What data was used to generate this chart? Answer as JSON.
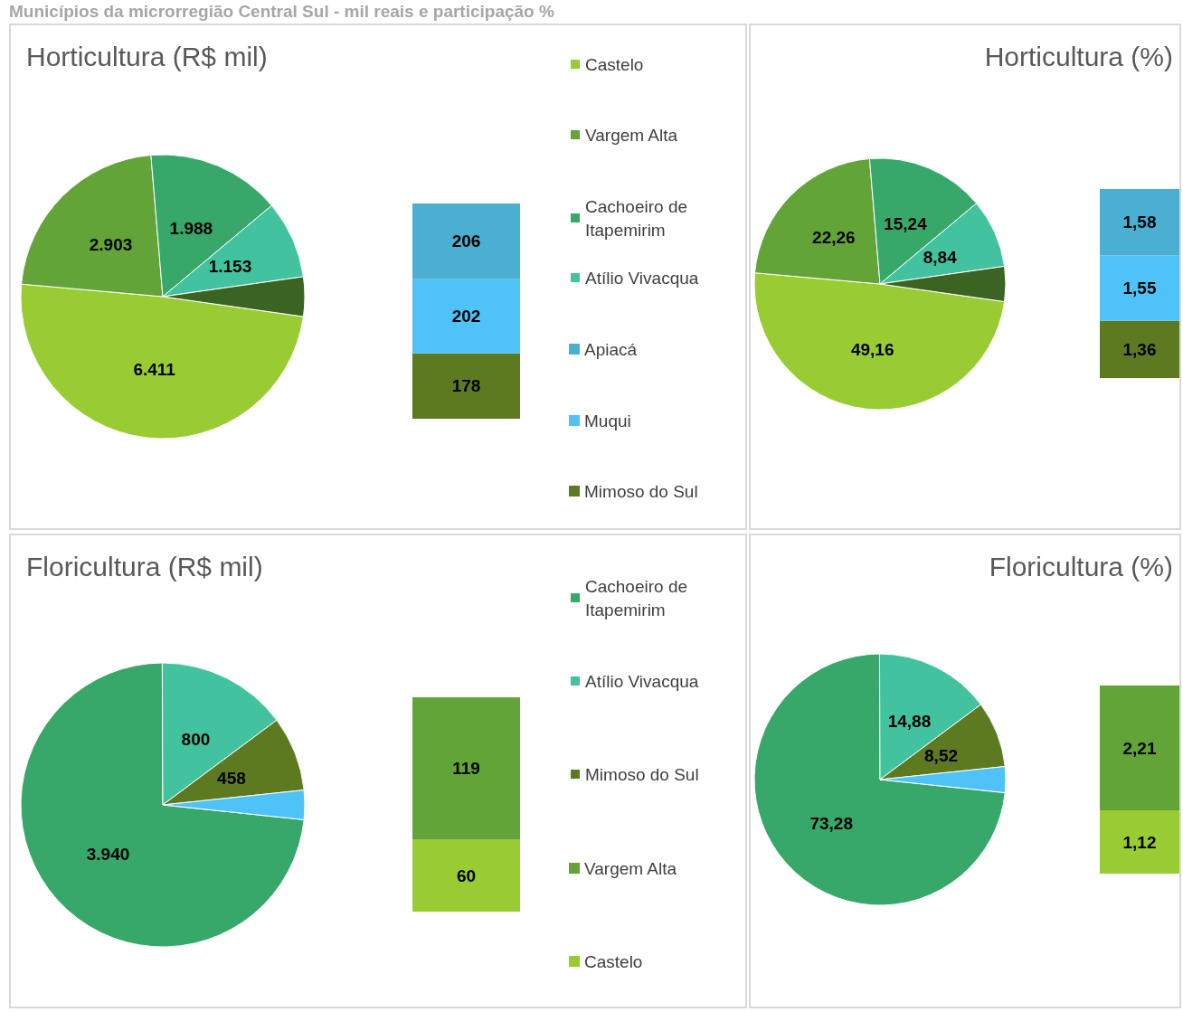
{
  "chart_data": [
    {
      "type": "pie",
      "title": "Horticultura (R$ mil)",
      "annotations": [
        "Municípios da microrregião Central Sul - mil reais e participação %"
      ],
      "categories": [
        "Castelo",
        "Vargem Alta",
        "Cachoeiro de Itapemirim",
        "Atílio Vivacqua",
        null
      ],
      "values": [
        6411,
        2903,
        1988,
        1153,
        586
      ],
      "value_labels": [
        "6.411",
        "2.903",
        "1.988",
        "1.153",
        null
      ],
      "colors": [
        "#99cc33",
        "#62a437",
        "#38a86a",
        "#43c2a0",
        "#3b6322"
      ],
      "legend": "right"
    },
    {
      "type": "bar",
      "stacked": true,
      "categories": [
        null
      ],
      "legend": "right",
      "series": [
        {
          "name": "Mimoso do Sul",
          "color": "#5e7a20",
          "values": [
            178
          ],
          "value_labels": [
            "178"
          ]
        },
        {
          "name": "Muqui",
          "color": "#4fc3f7",
          "values": [
            202
          ],
          "value_labels": [
            "202"
          ]
        },
        {
          "name": "Apiacá",
          "color": "#4bafd1",
          "values": [
            206
          ],
          "value_labels": [
            "206"
          ]
        }
      ]
    },
    {
      "type": "pie",
      "title": "Horticultura (%)",
      "categories": [
        null,
        null,
        null,
        null,
        null
      ],
      "values": [
        49.16,
        22.26,
        15.24,
        8.84,
        4.49
      ],
      "value_labels": [
        "49,16",
        "22,26",
        "15,24",
        "8,84",
        null
      ],
      "colors": [
        "#99cc33",
        "#62a437",
        "#38a86a",
        "#43c2a0",
        "#3b6322"
      ]
    },
    {
      "type": "bar",
      "stacked": true,
      "categories": [
        null
      ],
      "series": [
        {
          "color": "#5e7a20",
          "values": [
            1.36
          ],
          "value_labels": [
            "1,36"
          ]
        },
        {
          "color": "#4fc3f7",
          "values": [
            1.55
          ],
          "value_labels": [
            "1,55"
          ]
        },
        {
          "color": "#4bafd1",
          "values": [
            1.58
          ],
          "value_labels": [
            "1,58"
          ]
        }
      ]
    },
    {
      "type": "pie",
      "title": "Floricultura (R$ mil)",
      "categories": [
        "Cachoeiro de Itapemirim",
        "Atílio Vivacqua",
        "Mimoso do Sul",
        null
      ],
      "values": [
        3940,
        800,
        458,
        179
      ],
      "value_labels": [
        "3.940",
        "800",
        "458",
        null
      ],
      "colors": [
        "#38a86a",
        "#43c2a0",
        "#5e7a20",
        "#4fc3f7"
      ],
      "legend": "right"
    },
    {
      "type": "bar",
      "stacked": true,
      "categories": [
        null
      ],
      "legend": "right",
      "series": [
        {
          "name": "Castelo",
          "color": "#99cc33",
          "values": [
            60
          ],
          "value_labels": [
            "60"
          ]
        },
        {
          "name": "Vargem Alta",
          "color": "#62a437",
          "values": [
            119
          ],
          "value_labels": [
            "119"
          ]
        }
      ]
    },
    {
      "type": "pie",
      "title": "Floricultura (%)",
      "categories": [
        null,
        null,
        null,
        null
      ],
      "values": [
        73.28,
        14.88,
        8.52,
        3.33
      ],
      "value_labels": [
        "73,28",
        "14,88",
        "8,52",
        null
      ],
      "colors": [
        "#38a86a",
        "#43c2a0",
        "#5e7a20",
        "#4fc3f7"
      ]
    },
    {
      "type": "bar",
      "stacked": true,
      "categories": [
        null
      ],
      "series": [
        {
          "color": "#99cc33",
          "values": [
            1.12
          ],
          "value_labels": [
            "1,12"
          ]
        },
        {
          "color": "#62a437",
          "values": [
            2.21
          ],
          "value_labels": [
            "2,21"
          ]
        }
      ]
    }
  ]
}
